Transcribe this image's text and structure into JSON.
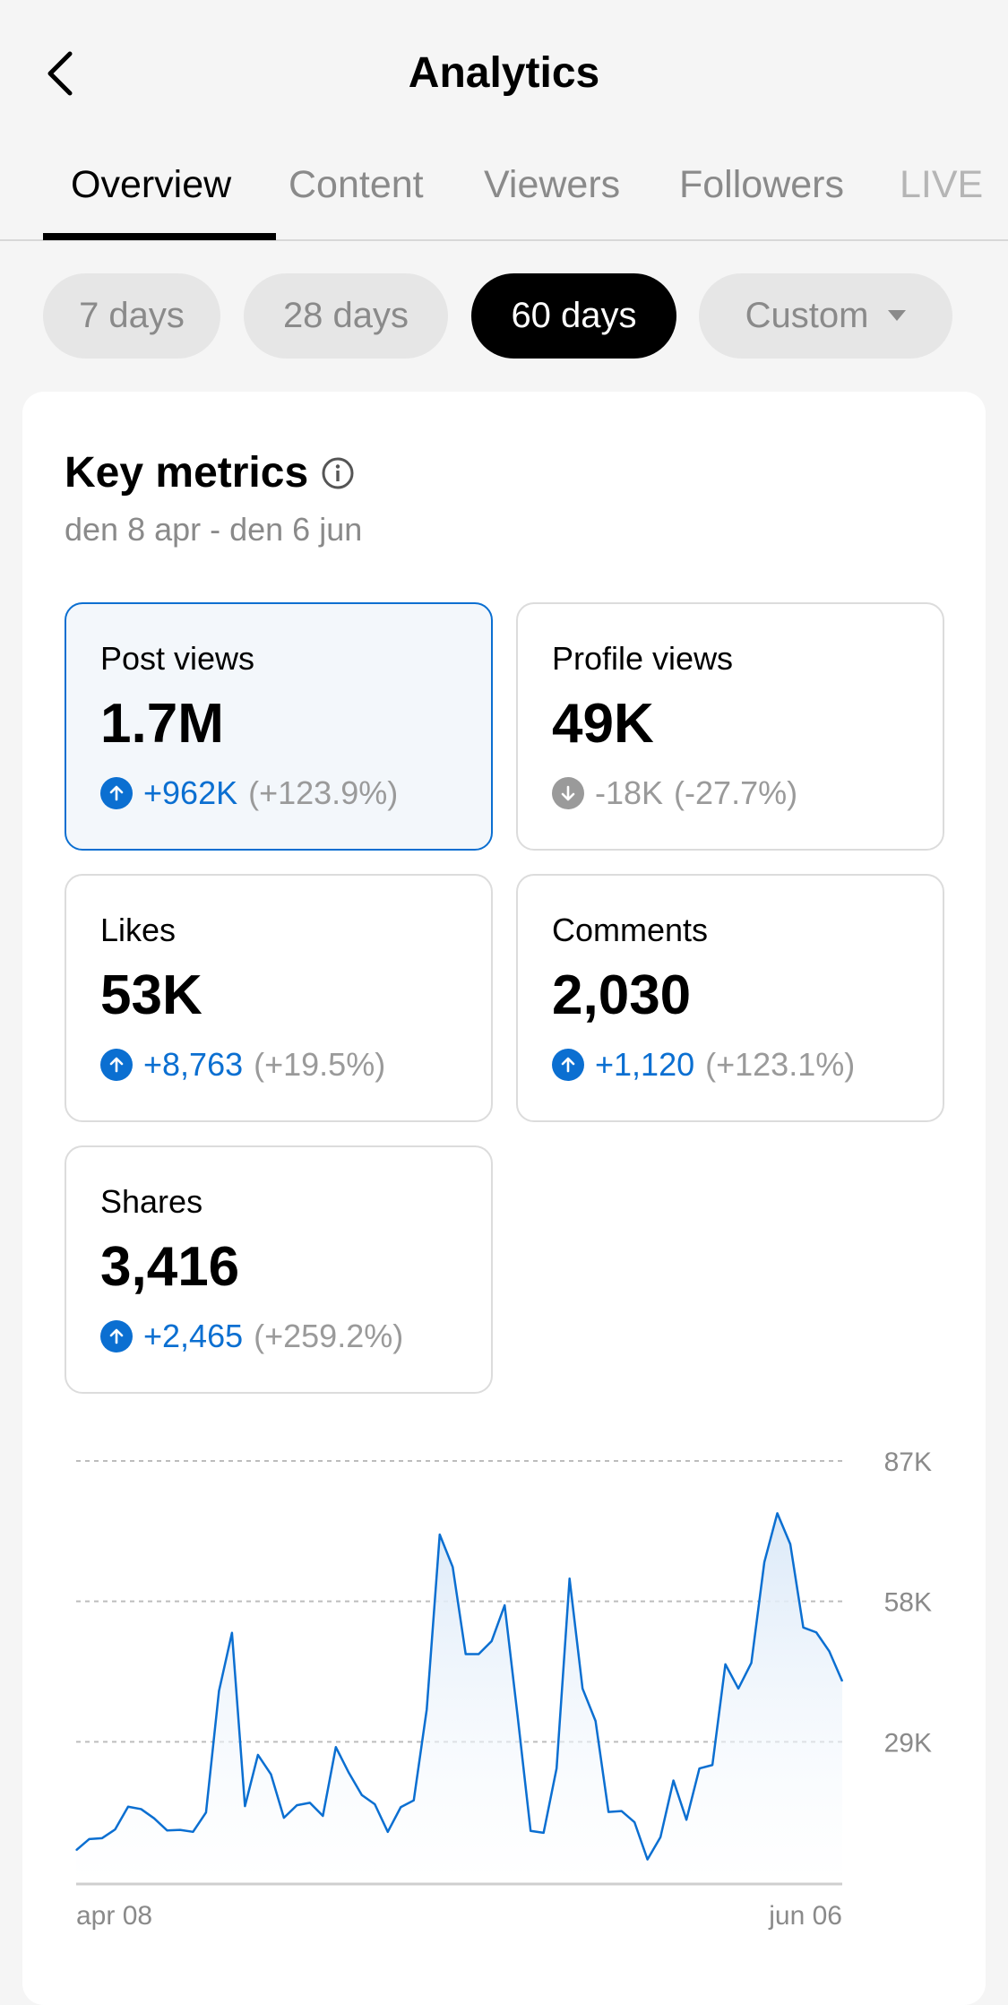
{
  "header": {
    "title": "Analytics",
    "back_icon": "chevron-left-icon"
  },
  "tabs": [
    {
      "label": "Overview",
      "active": true
    },
    {
      "label": "Content"
    },
    {
      "label": "Viewers"
    },
    {
      "label": "Followers"
    },
    {
      "label": "LIVE"
    }
  ],
  "ranges": [
    {
      "label": "7 days"
    },
    {
      "label": "28 days"
    },
    {
      "label": "60 days",
      "active": true
    },
    {
      "label": "Custom",
      "icon": "caret-down-icon"
    }
  ],
  "key_metrics": {
    "title": "Key metrics",
    "date_range": "den 8 apr - den 6 jun",
    "info_icon": "info-icon"
  },
  "metrics": [
    {
      "label": "Post views",
      "value": "1.7M",
      "change": "+962K",
      "pct": "(+123.9%)",
      "trend": "up",
      "selected": true
    },
    {
      "label": "Profile views",
      "value": "49K",
      "change": "-18K",
      "pct": "(-27.7%)",
      "trend": "down"
    },
    {
      "label": "Likes",
      "value": "53K",
      "change": "+8,763",
      "pct": "(+19.5%)",
      "trend": "up"
    },
    {
      "label": "Comments",
      "value": "2,030",
      "change": "+1,120",
      "pct": "(+123.1%)",
      "trend": "up"
    },
    {
      "label": "Shares",
      "value": "3,416",
      "change": "+2,465",
      "pct": "(+259.2%)",
      "trend": "up"
    }
  ],
  "colors": {
    "accent": "#0b6fd1",
    "negative": "#9a9a9a",
    "fill": "#dbe9f8"
  },
  "chart_data": {
    "type": "area",
    "ylabel": "",
    "xlabel": "",
    "ylim": [
      0,
      87000
    ],
    "yticks": [
      "87K",
      "58K",
      "29K"
    ],
    "ytick_values": [
      87000,
      58000,
      29000
    ],
    "xticks": [
      "apr 08",
      "jun 06"
    ],
    "grid": true,
    "values_k": [
      6.6,
      8.9,
      9.1,
      10.9,
      15.6,
      15.1,
      13.2,
      10.7,
      10.8,
      10.4,
      14.4,
      39.5,
      51.5,
      15.7,
      26.3,
      22.3,
      13.3,
      15.9,
      16.4,
      13.7,
      27.9,
      22.6,
      18.0,
      16.1,
      10.4,
      15.5,
      16.9,
      35.7,
      71.8,
      65.1,
      47.1,
      47.1,
      49.8,
      57.2,
      34.3,
      10.6,
      10.2,
      23.5,
      62.7,
      40.0,
      33.3,
      14.5,
      14.7,
      12.4,
      4.7,
      9.3,
      21.0,
      12.9,
      23.5,
      24.2,
      45.0,
      40.0,
      45.3,
      66.1,
      76.2,
      69.8,
      52.6,
      51.6,
      47.7,
      41.5
    ]
  }
}
